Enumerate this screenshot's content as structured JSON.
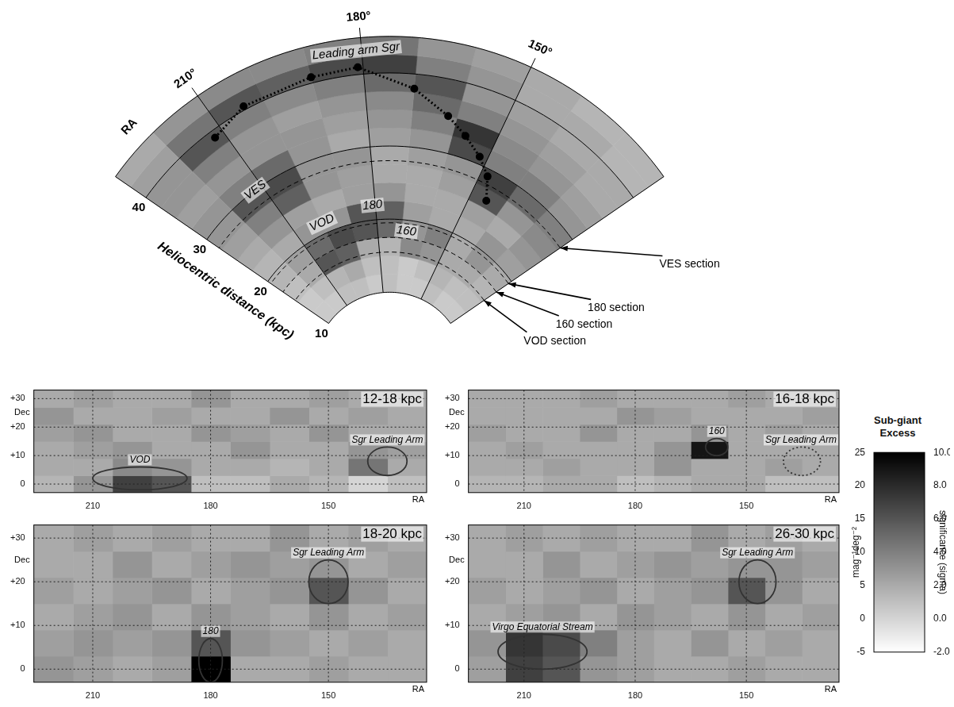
{
  "chart_data": [
    {
      "type": "polar_heatmap",
      "axis_label": "Heliocentric distance (kpc)",
      "ra_label": "RA",
      "ralim": [
        120,
        230
      ],
      "raticks": [
        {
          "value": 150,
          "label": "150°"
        },
        {
          "value": 180,
          "label": "180°"
        },
        {
          "value": 210,
          "label": "210°"
        }
      ],
      "rlim": [
        10,
        45
      ],
      "rticks": [
        10,
        20,
        30,
        40
      ],
      "ra_edges": [
        120,
        130,
        140,
        150,
        160,
        170,
        180,
        190,
        200,
        210,
        220,
        230
      ],
      "distance_edges": [
        10,
        12.5,
        15,
        17.5,
        20,
        22.5,
        25,
        27.5,
        30,
        32.5,
        35,
        37.5,
        40,
        42.5,
        45
      ],
      "cells": [
        [
          0.5,
          0.5,
          1,
          0.5,
          0.5,
          1,
          0.5,
          1,
          1,
          0.5,
          0.5
        ],
        [
          1,
          1,
          1.5,
          1,
          0.5,
          1,
          1,
          2,
          1.5,
          1,
          0.5
        ],
        [
          1.5,
          2,
          2,
          3,
          3.5,
          1.5,
          2,
          5.5,
          6,
          2,
          1
        ],
        [
          2,
          3,
          2,
          4,
          3,
          5,
          6,
          6.5,
          5,
          2.5,
          1.5
        ],
        [
          2.5,
          3,
          2,
          2,
          2.5,
          5.5,
          6,
          3,
          3,
          2,
          1.5
        ],
        [
          3,
          2,
          2.5,
          2,
          2,
          3,
          2.5,
          2,
          2.5,
          3,
          2
        ],
        [
          3.5,
          3,
          6,
          2.5,
          2,
          2,
          2.5,
          3,
          5.5,
          4,
          2.5
        ],
        [
          4,
          5,
          7,
          3,
          2.5,
          2,
          3,
          3,
          6.5,
          6,
          3
        ],
        [
          3,
          4,
          4,
          6.5,
          3,
          2.5,
          2,
          3,
          5,
          4,
          3
        ],
        [
          2.5,
          3,
          3.5,
          7.5,
          4,
          3,
          2.5,
          3,
          3,
          3,
          2.5
        ],
        [
          2,
          2.5,
          3,
          4,
          5,
          3.5,
          3,
          2.5,
          3,
          4,
          3
        ],
        [
          2,
          2,
          2.5,
          3,
          6,
          5,
          4,
          3.5,
          4,
          6,
          3
        ],
        [
          1.5,
          2,
          2,
          3,
          4,
          7,
          6.5,
          5.5,
          6,
          4.5,
          2.5
        ],
        [
          1.5,
          1.5,
          2,
          2.5,
          3,
          4.5,
          4,
          3.5,
          3.5,
          3,
          2
        ]
      ],
      "series": [
        {
          "name": "Leading arm Sgr",
          "color": "#000000",
          "line_style": "dotted",
          "marker": "circle",
          "ra": [
            212,
            204,
            190,
            181,
            170,
            162,
            157,
            152,
            148,
            145
          ],
          "distance": [
            39,
            40.5,
            40.8,
            41,
            38,
            35,
            33,
            31,
            29,
            26
          ]
        }
      ],
      "annotations": [
        {
          "text": "VES",
          "ra": 212,
          "distance": 30
        },
        {
          "text": "VOD",
          "ra": 200,
          "distance": 21.5
        },
        {
          "text": "180",
          "ra": 181,
          "distance": 22
        },
        {
          "text": "160",
          "ra": 168,
          "distance": 18.5
        }
      ],
      "sections": [
        {
          "label": "VOD section",
          "distance": 15.5,
          "line_style": "dashed"
        },
        {
          "label": "160 section",
          "distance": 17.5,
          "line_style": "dashed"
        },
        {
          "label": "180 section",
          "distance": 19.5,
          "line_style": "dashed"
        },
        {
          "label": "VES section",
          "distance": 28,
          "line_style": "dashed"
        }
      ]
    },
    {
      "type": "heatmap",
      "title": "12-18 kpc",
      "xlabel": "RA",
      "ylabel": "Dec",
      "xlim": [
        225,
        125
      ],
      "ylim": [
        -3,
        33
      ],
      "xticks": [
        210,
        180,
        150
      ],
      "yticks": [
        0,
        {
          "value": 10,
          "label": "+10"
        },
        {
          "value": 20,
          "label": "+20"
        },
        {
          "value": 30,
          "label": "+30"
        }
      ],
      "grid": true,
      "ra_edges": [
        125,
        135,
        145,
        155,
        165,
        175,
        185,
        195,
        205,
        215,
        225
      ],
      "dec_edges": [
        -3,
        3,
        9,
        15,
        21,
        27,
        33
      ],
      "cells": [
        [
          1,
          0,
          1.5,
          2,
          1,
          1,
          6,
          7,
          3,
          1.5
        ],
        [
          2,
          4.5,
          2,
          1.5,
          2,
          2,
          3,
          3.5,
          2,
          2
        ],
        [
          2.5,
          3,
          2,
          2,
          3,
          2,
          2,
          3,
          2.5,
          2
        ],
        [
          2,
          2,
          3,
          2,
          2.5,
          3,
          2,
          2,
          3,
          2.5
        ],
        [
          2,
          2.5,
          2,
          3,
          2,
          2,
          2.5,
          2,
          2,
          3
        ],
        [
          2,
          2,
          2.5,
          2,
          2,
          3,
          2,
          2,
          2.5,
          2
        ]
      ],
      "regions": [
        {
          "label": "VOD",
          "ra": 198,
          "dec": 2,
          "ra_radius": 12,
          "dec_radius": 4,
          "line_style": "solid"
        },
        {
          "label": "Sgr Leading Arm",
          "ra": 135,
          "dec": 8,
          "ra_radius": 5,
          "dec_radius": 5,
          "line_style": "solid"
        }
      ]
    },
    {
      "type": "heatmap",
      "title": "16-18 kpc",
      "xlabel": "RA",
      "ylabel": "Dec",
      "xlim": [
        225,
        125
      ],
      "ylim": [
        -3,
        33
      ],
      "xticks": [
        210,
        180,
        150
      ],
      "yticks": [
        0,
        {
          "value": 10,
          "label": "+10"
        },
        {
          "value": 20,
          "label": "+20"
        },
        {
          "value": 30,
          "label": "+30"
        }
      ],
      "grid": true,
      "ra_edges": [
        125,
        135,
        145,
        155,
        165,
        175,
        185,
        195,
        205,
        215,
        225
      ],
      "dec_edges": [
        -3,
        3,
        9,
        15,
        21,
        27,
        33
      ],
      "cells": [
        [
          1,
          1,
          2,
          2,
          1.5,
          1,
          2,
          2,
          1.5,
          1.5
        ],
        [
          2,
          2.5,
          2,
          2,
          3,
          2,
          2,
          2.5,
          2,
          2
        ],
        [
          2,
          2,
          2,
          9,
          3,
          2,
          2,
          2,
          2.5,
          2
        ],
        [
          2,
          2.5,
          2,
          3,
          2,
          2,
          3,
          2,
          2,
          2.5
        ],
        [
          2.5,
          2,
          2,
          2,
          2.5,
          3,
          2,
          2,
          2,
          2
        ],
        [
          2,
          2,
          2.5,
          2,
          2,
          2,
          2.5,
          2,
          2,
          2
        ]
      ],
      "regions": [
        {
          "label": "160",
          "ra": 158,
          "dec": 13,
          "ra_radius": 3,
          "dec_radius": 3,
          "line_style": "solid"
        },
        {
          "label": "Sgr Leading Arm",
          "ra": 135,
          "dec": 8,
          "ra_radius": 5,
          "dec_radius": 5,
          "line_style": "dotted"
        }
      ]
    },
    {
      "type": "heatmap",
      "title": "18-20 kpc",
      "xlabel": "RA",
      "ylabel": "Dec",
      "xlim": [
        225,
        125
      ],
      "ylim": [
        -3,
        33
      ],
      "xticks": [
        210,
        180,
        150
      ],
      "yticks": [
        0,
        {
          "value": 10,
          "label": "+10"
        },
        {
          "value": 20,
          "label": "+20"
        },
        {
          "value": 30,
          "label": "+30"
        }
      ],
      "grid": true,
      "ra_edges": [
        125,
        135,
        145,
        155,
        165,
        175,
        185,
        195,
        205,
        215,
        225
      ],
      "dec_edges": [
        -3,
        3,
        9,
        15,
        21,
        27,
        33
      ],
      "cells": [
        [
          2,
          2,
          2.5,
          2,
          2,
          10,
          2.5,
          2,
          2.5,
          3
        ],
        [
          2,
          2.5,
          2,
          2.5,
          3,
          6,
          3,
          2.5,
          3,
          2.5
        ],
        [
          2.5,
          2,
          3,
          2,
          2.5,
          3,
          2,
          3,
          2.5,
          2
        ],
        [
          2,
          3,
          6,
          3,
          2.5,
          2,
          3,
          2.5,
          2,
          2.5
        ],
        [
          2.5,
          2,
          3,
          2.5,
          3,
          2.5,
          2,
          3,
          2,
          2
        ],
        [
          2,
          2.5,
          2,
          3,
          2,
          2,
          2.5,
          2,
          2.5,
          2
        ]
      ],
      "regions": [
        {
          "label": "180",
          "ra": 180,
          "dec": 2,
          "ra_radius": 3,
          "dec_radius": 5,
          "line_style": "solid"
        },
        {
          "label": "Sgr Leading Arm",
          "ra": 150,
          "dec": 20,
          "ra_radius": 5,
          "dec_radius": 5,
          "line_style": "solid"
        }
      ]
    },
    {
      "type": "heatmap",
      "title": "26-30 kpc",
      "xlabel": "RA",
      "ylabel": "Dec",
      "xlim": [
        225,
        125
      ],
      "ylim": [
        -3,
        33
      ],
      "xticks": [
        210,
        180,
        150
      ],
      "yticks": [
        0,
        {
          "value": 10,
          "label": "+10"
        },
        {
          "value": 20,
          "label": "+20"
        },
        {
          "value": 30,
          "label": "+30"
        }
      ],
      "grid": true,
      "ra_edges": [
        125,
        135,
        145,
        155,
        165,
        175,
        185,
        195,
        205,
        215,
        225
      ],
      "dec_edges": [
        -3,
        3,
        9,
        15,
        21,
        27,
        33
      ],
      "cells": [
        [
          2,
          2,
          2.5,
          2,
          2,
          2.5,
          3,
          6,
          7,
          2.5
        ],
        [
          2,
          2.5,
          2,
          3,
          2,
          2.5,
          4,
          6.5,
          7.5,
          3
        ],
        [
          2.5,
          2,
          3,
          2,
          2.5,
          3,
          2,
          3,
          2.5,
          2
        ],
        [
          2,
          3,
          6,
          3,
          2.5,
          2,
          3,
          2.5,
          2,
          2.5
        ],
        [
          2.5,
          3,
          3,
          2.5,
          3,
          2.5,
          2,
          3,
          2,
          2
        ],
        [
          2,
          2.5,
          2,
          3,
          2,
          2,
          2.5,
          2,
          2.5,
          2
        ]
      ],
      "regions": [
        {
          "label": "Virgo Equatorial Stream",
          "ra": 205,
          "dec": 4,
          "ra_radius": 12,
          "dec_radius": 4,
          "line_style": "solid"
        },
        {
          "label": "Sgr Leading Arm",
          "ra": 147,
          "dec": 20,
          "ra_radius": 5,
          "dec_radius": 5,
          "line_style": "solid"
        }
      ]
    },
    {
      "type": "colorbar",
      "title": "Sub-giant Excess",
      "ylabel": "significance (sigma)",
      "ylim": [
        -2,
        10
      ],
      "yticks": [
        {
          "value": -2,
          "label": "-2.0"
        },
        {
          "value": 0,
          "label": "0.0"
        },
        {
          "value": 2,
          "label": "2.0"
        },
        {
          "value": 4,
          "label": "4.0"
        },
        {
          "value": 6,
          "label": "6.0"
        },
        {
          "value": 8,
          "label": "8.0"
        },
        {
          "value": 10,
          "label": "10.0"
        }
      ],
      "y2label": "mag⁻¹deg⁻²",
      "y2lim": [
        -5,
        25
      ],
      "y2ticks": [
        -5,
        0,
        5,
        10,
        15,
        20,
        25
      ]
    }
  ]
}
